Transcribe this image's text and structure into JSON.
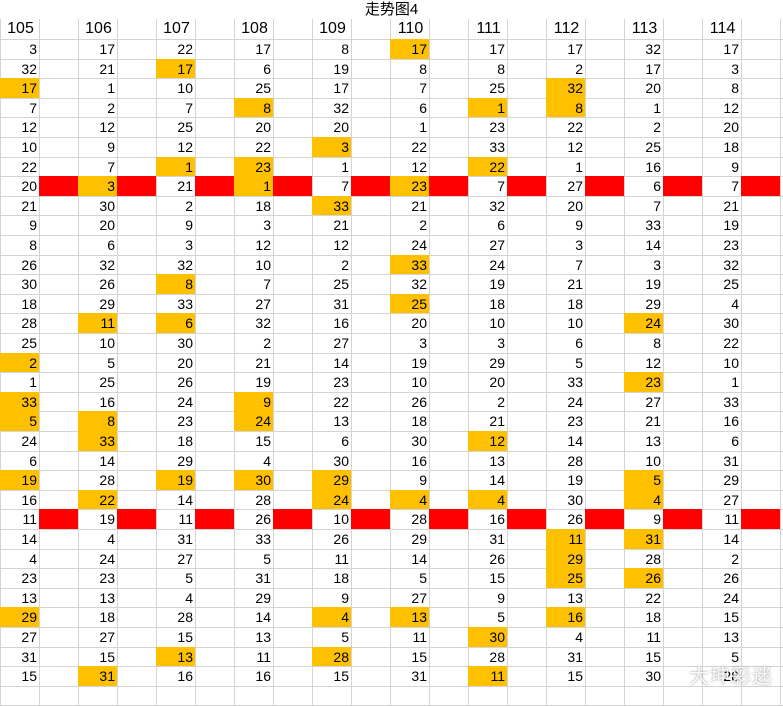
{
  "title": "走势图4",
  "columns": [
    "105",
    "106",
    "107",
    "108",
    "109",
    "110",
    "111",
    "112",
    "113",
    "114"
  ],
  "rows": [
    [
      "3",
      "17",
      "22",
      "17",
      "8",
      "17",
      "17",
      "17",
      "32",
      "17"
    ],
    [
      "32",
      "21",
      "17",
      "6",
      "19",
      "8",
      "8",
      "2",
      "17",
      "3"
    ],
    [
      "17",
      "1",
      "10",
      "25",
      "17",
      "7",
      "25",
      "32",
      "20",
      "8"
    ],
    [
      "7",
      "2",
      "7",
      "8",
      "32",
      "6",
      "1",
      "8",
      "1",
      "12"
    ],
    [
      "12",
      "12",
      "25",
      "20",
      "20",
      "1",
      "23",
      "22",
      "2",
      "20"
    ],
    [
      "10",
      "9",
      "12",
      "22",
      "3",
      "22",
      "33",
      "12",
      "25",
      "18"
    ],
    [
      "22",
      "7",
      "1",
      "23",
      "1",
      "12",
      "22",
      "1",
      "16",
      "9"
    ],
    [
      "20",
      "3",
      "21",
      "1",
      "7",
      "23",
      "7",
      "27",
      "6",
      "7"
    ],
    [
      "21",
      "30",
      "2",
      "18",
      "33",
      "21",
      "32",
      "20",
      "7",
      "21"
    ],
    [
      "9",
      "20",
      "9",
      "3",
      "21",
      "2",
      "6",
      "9",
      "33",
      "19"
    ],
    [
      "8",
      "6",
      "3",
      "12",
      "12",
      "24",
      "27",
      "3",
      "14",
      "23"
    ],
    [
      "26",
      "32",
      "32",
      "10",
      "2",
      "33",
      "24",
      "7",
      "3",
      "32"
    ],
    [
      "30",
      "26",
      "8",
      "7",
      "25",
      "32",
      "19",
      "21",
      "19",
      "25"
    ],
    [
      "18",
      "29",
      "33",
      "27",
      "31",
      "25",
      "18",
      "18",
      "29",
      "4"
    ],
    [
      "28",
      "11",
      "6",
      "32",
      "16",
      "20",
      "10",
      "10",
      "24",
      "30"
    ],
    [
      "25",
      "10",
      "30",
      "2",
      "27",
      "3",
      "3",
      "6",
      "8",
      "22"
    ],
    [
      "2",
      "5",
      "20",
      "21",
      "14",
      "19",
      "29",
      "5",
      "12",
      "10"
    ],
    [
      "1",
      "25",
      "26",
      "19",
      "23",
      "10",
      "20",
      "33",
      "23",
      "1"
    ],
    [
      "33",
      "16",
      "24",
      "9",
      "22",
      "26",
      "2",
      "24",
      "27",
      "33"
    ],
    [
      "5",
      "8",
      "23",
      "24",
      "13",
      "18",
      "21",
      "23",
      "21",
      "16"
    ],
    [
      "24",
      "33",
      "18",
      "15",
      "6",
      "30",
      "12",
      "14",
      "13",
      "6"
    ],
    [
      "6",
      "14",
      "29",
      "4",
      "30",
      "16",
      "13",
      "28",
      "10",
      "31"
    ],
    [
      "19",
      "28",
      "19",
      "30",
      "29",
      "9",
      "14",
      "19",
      "5",
      "29"
    ],
    [
      "16",
      "22",
      "14",
      "28",
      "24",
      "4",
      "4",
      "30",
      "4",
      "27"
    ],
    [
      "11",
      "19",
      "11",
      "26",
      "10",
      "28",
      "16",
      "26",
      "9",
      "11"
    ],
    [
      "14",
      "4",
      "31",
      "33",
      "26",
      "29",
      "31",
      "11",
      "31",
      "14"
    ],
    [
      "4",
      "24",
      "27",
      "5",
      "11",
      "14",
      "26",
      "29",
      "28",
      "2"
    ],
    [
      "23",
      "23",
      "5",
      "31",
      "18",
      "5",
      "15",
      "25",
      "26",
      "26"
    ],
    [
      "13",
      "13",
      "4",
      "29",
      "9",
      "27",
      "9",
      "13",
      "22",
      "24"
    ],
    [
      "29",
      "18",
      "28",
      "14",
      "4",
      "13",
      "5",
      "16",
      "18",
      "15"
    ],
    [
      "27",
      "27",
      "15",
      "13",
      "5",
      "11",
      "30",
      "4",
      "11",
      "13"
    ],
    [
      "31",
      "15",
      "13",
      "11",
      "28",
      "15",
      "28",
      "31",
      "15",
      "5"
    ],
    [
      "15",
      "31",
      "16",
      "16",
      "15",
      "31",
      "11",
      "15",
      "30",
      "28"
    ]
  ],
  "highlights": [
    [
      0,
      5
    ],
    [
      1,
      2
    ],
    [
      2,
      0
    ],
    [
      2,
      7
    ],
    [
      3,
      3
    ],
    [
      3,
      6
    ],
    [
      3,
      7
    ],
    [
      5,
      4
    ],
    [
      6,
      2
    ],
    [
      6,
      3
    ],
    [
      6,
      6
    ],
    [
      7,
      1
    ],
    [
      7,
      3
    ],
    [
      7,
      5
    ],
    [
      8,
      4
    ],
    [
      11,
      5
    ],
    [
      12,
      2
    ],
    [
      13,
      5
    ],
    [
      14,
      1
    ],
    [
      14,
      2
    ],
    [
      14,
      8
    ],
    [
      16,
      0
    ],
    [
      17,
      8
    ],
    [
      18,
      0
    ],
    [
      18,
      3
    ],
    [
      19,
      0
    ],
    [
      19,
      1
    ],
    [
      19,
      3
    ],
    [
      20,
      1
    ],
    [
      20,
      6
    ],
    [
      22,
      0
    ],
    [
      22,
      2
    ],
    [
      22,
      3
    ],
    [
      22,
      4
    ],
    [
      22,
      8
    ],
    [
      23,
      1
    ],
    [
      23,
      4
    ],
    [
      23,
      5
    ],
    [
      23,
      6
    ],
    [
      23,
      8
    ],
    [
      25,
      7
    ],
    [
      25,
      8
    ],
    [
      26,
      7
    ],
    [
      27,
      7
    ],
    [
      27,
      8
    ],
    [
      29,
      0
    ],
    [
      29,
      4
    ],
    [
      29,
      5
    ],
    [
      29,
      7
    ],
    [
      30,
      6
    ],
    [
      31,
      2
    ],
    [
      31,
      4
    ],
    [
      32,
      1
    ],
    [
      32,
      6
    ]
  ],
  "red_rows": [
    7,
    24
  ],
  "colors": {
    "highlight": "#ffc000",
    "red": "#ff0000",
    "grid": "#d4d4d4"
  },
  "watermark": "大坤彩迷"
}
